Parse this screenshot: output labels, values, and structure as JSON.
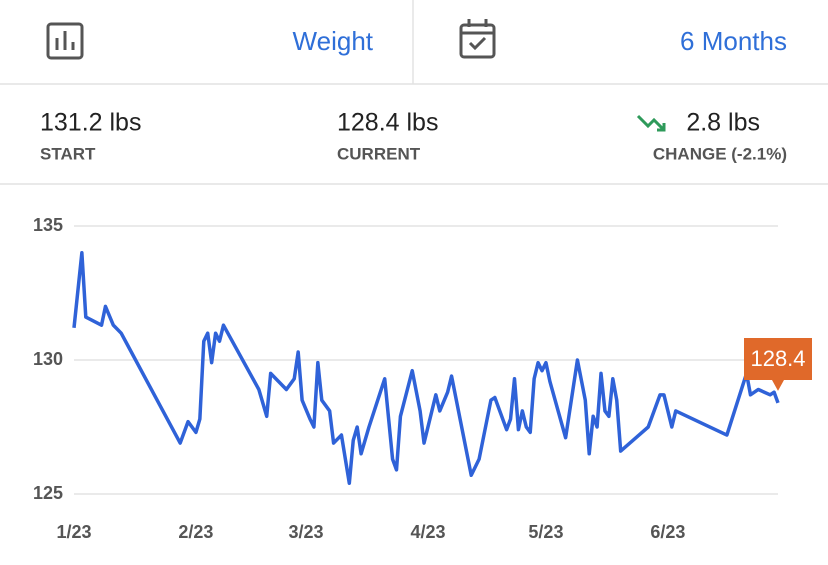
{
  "header": {
    "metric": "Weight",
    "range": "6 Months"
  },
  "stats": [
    {
      "value": "131.2 lbs",
      "label": "START"
    },
    {
      "value": "128.4 lbs",
      "label": "CURRENT"
    },
    {
      "value": "2.8 lbs",
      "label": "CHANGE (-2.1%)"
    }
  ],
  "chart_data": {
    "type": "line",
    "x": [
      0,
      2,
      3,
      7,
      8,
      10,
      12,
      27,
      29,
      31,
      32,
      33,
      34,
      35,
      36,
      37,
      38,
      47,
      49,
      50,
      54,
      56,
      57,
      58,
      60,
      61,
      62,
      63,
      65,
      66,
      68,
      70,
      71,
      72,
      73,
      75,
      79,
      81,
      82,
      83,
      86,
      88,
      89,
      92,
      93,
      95,
      96,
      101,
      103,
      106,
      107,
      110,
      111,
      112,
      113,
      114,
      115,
      116,
      117,
      118,
      119,
      120,
      121,
      125,
      128,
      130,
      131,
      132,
      133,
      134,
      135,
      136,
      137,
      138,
      139,
      146,
      149,
      150,
      152,
      153,
      166,
      171,
      172,
      174,
      177,
      178,
      179
    ],
    "series": [
      {
        "color": "#2f62d8",
        "values": [
          131.2,
          134.0,
          131.6,
          131.3,
          132.0,
          131.3,
          131.0,
          126.9,
          127.7,
          127.3,
          127.8,
          130.7,
          131.0,
          129.9,
          131.0,
          130.7,
          131.3,
          128.9,
          127.9,
          129.5,
          128.9,
          129.3,
          130.3,
          128.5,
          127.8,
          127.5,
          129.9,
          128.5,
          128.1,
          126.9,
          127.2,
          125.4,
          127.0,
          127.5,
          126.5,
          127.5,
          129.3,
          126.3,
          125.9,
          127.9,
          129.6,
          128.1,
          126.9,
          128.7,
          128.1,
          128.8,
          129.4,
          125.7,
          126.3,
          128.5,
          128.6,
          127.4,
          127.8,
          129.3,
          127.4,
          128.1,
          127.5,
          127.3,
          129.3,
          129.9,
          129.6,
          129.9,
          129.2,
          127.1,
          130.0,
          128.5,
          126.5,
          127.9,
          127.5,
          129.5,
          128.1,
          127.9,
          129.3,
          128.5,
          126.6,
          127.5,
          128.7,
          128.7,
          127.5,
          128.1,
          127.2,
          129.5,
          128.7,
          128.9,
          128.7,
          128.8,
          128.4
        ]
      }
    ],
    "xlim": [
      0,
      179
    ],
    "xticks": [
      {
        "value": 0,
        "label": "1/23"
      },
      {
        "value": 31,
        "label": "2/23"
      },
      {
        "value": 59,
        "label": "3/23"
      },
      {
        "value": 90,
        "label": "4/23"
      },
      {
        "value": 120,
        "label": "5/23"
      },
      {
        "value": 151,
        "label": "6/23"
      }
    ],
    "ylim": [
      125,
      135
    ],
    "yticks": [
      125,
      130,
      135
    ],
    "grid": true
  }
}
